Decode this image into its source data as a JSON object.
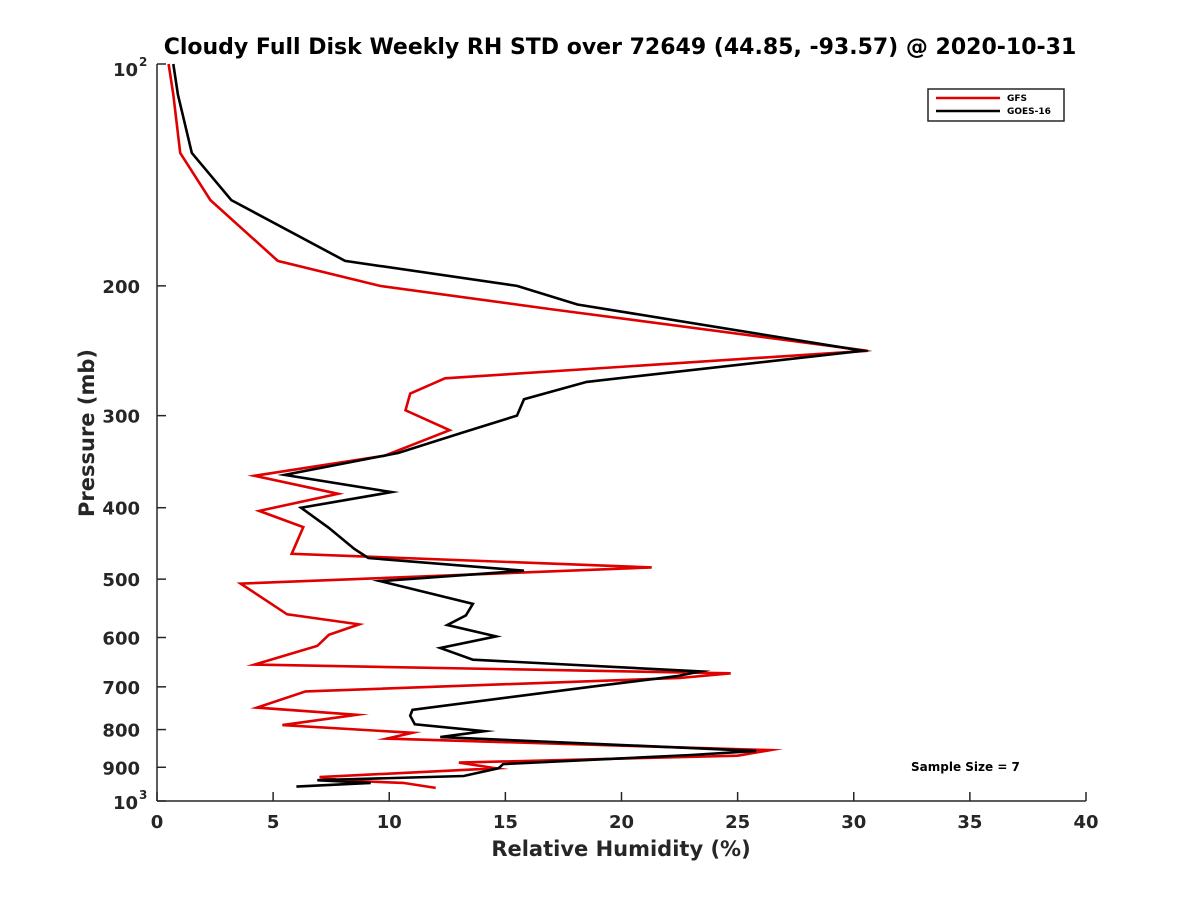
{
  "chart_data": {
    "type": "line",
    "title": "Cloudy Full Disk Weekly RH STD over 72649 (44.85, -93.57) @ 2020-10-31",
    "xlabel": "Relative Humidity (%)",
    "ylabel": "Pressure (mb)",
    "xlim": [
      0,
      40
    ],
    "ylim": [
      100,
      1000
    ],
    "y_scale": "log",
    "y_reversed": true,
    "x_ticks": [
      0,
      5,
      10,
      15,
      20,
      25,
      30,
      35,
      40
    ],
    "x_tick_labels": [
      "0",
      "5",
      "10",
      "15",
      "20",
      "25",
      "30",
      "35",
      "40"
    ],
    "y_ticks": [
      200,
      300,
      400,
      500,
      600,
      700,
      800,
      900
    ],
    "y_tick_labels": [
      "200",
      "300",
      "400",
      "500",
      "600",
      "700",
      "800",
      "900"
    ],
    "y_end_labels": {
      "top_base": "10",
      "top_exp": "2",
      "bottom_base": "10",
      "bottom_exp": "3"
    },
    "grid": false,
    "legend_position": "top-right",
    "annotation": "Sample Size = 7",
    "series": [
      {
        "name": "GFS",
        "color": "#e00000",
        "x": [
          0.5,
          0.7,
          1.0,
          2.3,
          5.2,
          9.6,
          16.9,
          30.6,
          12.4,
          10.9,
          10.7,
          12.6,
          9.8,
          4.2,
          7.8,
          4.4,
          6.3,
          5.8,
          21.3,
          3.6,
          5.6,
          8.7,
          7.4,
          6.9,
          4.2,
          24.7,
          22.5,
          6.4,
          4.3,
          8.6,
          5.4,
          11.0,
          9.9,
          26.4,
          25.0,
          13.0,
          14.6,
          7.0,
          8.0,
          10.6,
          12.0
        ],
        "y": [
          100,
          110,
          132,
          153,
          185,
          200,
          215,
          245,
          267,
          280,
          295,
          314,
          340,
          362,
          383,
          404,
          425,
          462,
          482,
          507,
          558,
          576,
          595,
          616,
          653,
          671,
          681,
          710,
          747,
          764,
          789,
          808,
          823,
          853,
          868,
          887,
          903,
          928,
          938,
          945,
          960
        ]
      },
      {
        "name": "GOES-16",
        "color": "#000000",
        "x": [
          0.7,
          0.9,
          1.5,
          3.2,
          8.1,
          15.5,
          18.1,
          30.4,
          18.5,
          15.8,
          15.5,
          13.2,
          10.4,
          5.5,
          10.1,
          6.2,
          7.4,
          8.5,
          9.1,
          15.8,
          9.6,
          13.6,
          13.3,
          12.5,
          14.6,
          12.2,
          13.6,
          23.4,
          22.4,
          18.8,
          11.0,
          10.9,
          11.1,
          14.1,
          12.2,
          25.8,
          23.0,
          14.9,
          14.7,
          13.2,
          6.9,
          9.2,
          6.0
        ],
        "y": [
          100,
          110,
          132,
          153,
          185,
          200,
          212,
          245,
          270,
          285,
          300,
          316,
          337,
          361,
          381,
          400,
          426,
          455,
          468,
          487,
          503,
          540,
          560,
          577,
          598,
          620,
          643,
          667,
          677,
          699,
          752,
          766,
          787,
          804,
          819,
          855,
          866,
          891,
          903,
          925,
          937,
          945,
          956
        ]
      }
    ]
  }
}
